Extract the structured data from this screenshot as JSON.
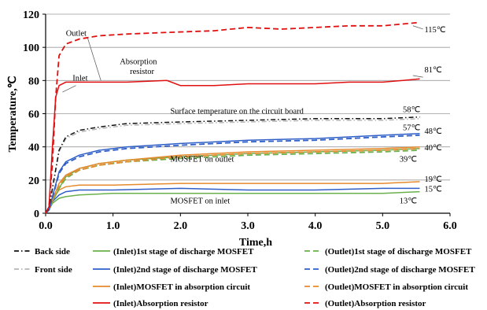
{
  "chart_data": {
    "type": "line",
    "xlabel": "Time,h",
    "ylabel": "Temperature,℃",
    "xlim": [
      0,
      6
    ],
    "ylim": [
      0,
      120
    ],
    "xticks": [
      "0.0",
      "1.0",
      "2.0",
      "3.0",
      "4.0",
      "5.0",
      "6.0"
    ],
    "yticks": [
      "0",
      "20",
      "40",
      "60",
      "80",
      "100",
      "120"
    ],
    "grid": "horizontal",
    "series": [
      {
        "name": "(Outlet)Absorption resistor",
        "color": "#e01010",
        "dash": "dashed",
        "x": [
          0,
          0.05,
          0.1,
          0.15,
          0.2,
          0.3,
          0.5,
          0.8,
          1.2,
          1.8,
          2.5,
          3.0,
          3.5,
          4.0,
          4.5,
          5.0,
          5.55
        ],
        "y": [
          0,
          4,
          30,
          70,
          95,
          102,
          105,
          107,
          108,
          109,
          110,
          112,
          111,
          112,
          113,
          113,
          115
        ]
      },
      {
        "name": "(Inlet)Absorption resistor",
        "color": "#e01010",
        "dash": "solid",
        "x": [
          0,
          0.05,
          0.1,
          0.15,
          0.2,
          0.3,
          0.5,
          0.8,
          1.2,
          1.8,
          2.0,
          2.5,
          3.0,
          3.5,
          4.0,
          4.5,
          5.0,
          5.3,
          5.55
        ],
        "y": [
          0,
          4,
          40,
          70,
          77,
          79,
          79,
          79,
          79,
          80,
          77,
          77,
          78,
          78,
          78,
          79,
          79,
          80,
          81
        ]
      },
      {
        "name": "Back side",
        "color": "#111111",
        "dash": "dashdot",
        "x": [
          0,
          0.05,
          0.1,
          0.2,
          0.3,
          0.5,
          0.8,
          1.2,
          2.0,
          3.0,
          4.0,
          5.0,
          5.55
        ],
        "y": [
          0,
          3,
          15,
          38,
          46,
          50,
          52,
          54,
          55,
          56,
          57,
          57,
          58
        ]
      },
      {
        "name": "Front side",
        "color": "#b5b5b5",
        "dash": "dashdot",
        "x": [
          0,
          0.05,
          0.1,
          0.2,
          0.3,
          0.5,
          0.8,
          1.2,
          2.0,
          3.0,
          4.0,
          5.0,
          5.55
        ],
        "y": [
          0,
          3,
          14,
          37,
          45,
          49,
          51,
          53,
          54,
          55,
          56,
          56,
          57
        ]
      },
      {
        "name": "(Inlet)2nd stage of discharge MOSFET",
        "color": "#2f5fc7",
        "dash": "solid",
        "x": [
          0,
          0.05,
          0.1,
          0.2,
          0.3,
          0.5,
          0.8,
          1.2,
          2.0,
          3.0,
          4.0,
          5.0,
          5.55
        ],
        "y": [
          0,
          2,
          10,
          25,
          31,
          35,
          38,
          40,
          42,
          44,
          45,
          47,
          48
        ]
      },
      {
        "name": "(Outlet)2nd stage of discharge MOSFET",
        "color": "#2f5fc7",
        "dash": "dashed",
        "x": [
          0,
          0.05,
          0.1,
          0.2,
          0.3,
          0.5,
          0.8,
          1.2,
          2.0,
          3.0,
          4.0,
          5.0,
          5.55
        ],
        "y": [
          0,
          2,
          9,
          24,
          30,
          34,
          37,
          39,
          41,
          43,
          44,
          46,
          47
        ]
      },
      {
        "name": "(Inlet)MOSFET in absorption circuit",
        "color": "#e58a2d",
        "dash": "solid",
        "x": [
          0,
          0.05,
          0.1,
          0.2,
          0.3,
          0.5,
          0.8,
          1.2,
          2.0,
          3.0,
          4.0,
          5.0,
          5.55
        ],
        "y": [
          0,
          2,
          8,
          18,
          23,
          27,
          30,
          32,
          35,
          37,
          38,
          39,
          40
        ]
      },
      {
        "name": "(Outlet)MOSFET in absorption circuit",
        "color": "#e58a2d",
        "dash": "dashed",
        "x": [
          0,
          0.05,
          0.1,
          0.2,
          0.3,
          0.5,
          0.8,
          1.2,
          2.0,
          3.0,
          4.0,
          5.0,
          5.55
        ],
        "y": [
          0,
          2,
          8,
          17,
          22,
          26,
          29,
          31,
          34,
          36,
          37,
          38,
          39
        ]
      },
      {
        "name": "(Inlet)1st stage of discharge MOSFET",
        "color": "#6ab04c",
        "dash": "solid",
        "x": [
          0,
          0.05,
          0.1,
          0.2,
          0.3,
          0.5,
          0.8,
          1.2,
          2.0,
          3.0,
          4.0,
          5.0,
          5.55
        ],
        "y": [
          0,
          2,
          7,
          15,
          22,
          27,
          30,
          32,
          34,
          36,
          37,
          38,
          39
        ]
      },
      {
        "name": "(Outlet)1st stage of discharge MOSFET",
        "color": "#6ab04c",
        "dash": "dashed",
        "x": [
          0,
          0.05,
          0.1,
          0.2,
          0.3,
          0.5,
          0.8,
          1.2,
          2.0,
          3.0,
          4.0,
          5.0,
          5.55
        ],
        "y": [
          0,
          2,
          7,
          15,
          21,
          26,
          29,
          31,
          33,
          35,
          36,
          37,
          38
        ]
      },
      {
        "name": "inlet orange",
        "color": "#e58a2d",
        "dash": "solid",
        "x": [
          0,
          0.05,
          0.1,
          0.2,
          0.3,
          0.5,
          1.0,
          2.0,
          3.0,
          4.0,
          5.0,
          5.55
        ],
        "y": [
          0,
          2,
          8,
          14,
          16,
          17,
          17,
          18,
          18,
          18,
          18,
          19
        ]
      },
      {
        "name": "inlet blue",
        "color": "#2f5fc7",
        "dash": "solid",
        "x": [
          0,
          0.05,
          0.1,
          0.2,
          0.3,
          0.5,
          1.0,
          2.0,
          3.0,
          4.0,
          5.0,
          5.55
        ],
        "y": [
          0,
          2,
          7,
          11,
          13,
          14,
          14,
          15,
          14,
          14,
          15,
          15
        ]
      },
      {
        "name": "inlet green",
        "color": "#6ab04c",
        "dash": "solid",
        "x": [
          0,
          0.05,
          0.1,
          0.2,
          0.3,
          0.5,
          1.0,
          2.0,
          3.0,
          4.0,
          5.0,
          5.55
        ],
        "y": [
          0,
          2,
          6,
          9,
          10,
          11,
          12,
          12,
          12,
          12,
          12,
          13
        ]
      }
    ],
    "annotations": [
      {
        "text": "Outlet",
        "x": 0.3,
        "y": 107
      },
      {
        "text": "Absorption",
        "x": 1.1,
        "y": 90
      },
      {
        "text": "resistor",
        "x": 1.25,
        "y": 84
      },
      {
        "text": "Inlet",
        "x": 0.4,
        "y": 80
      },
      {
        "text": "Surface temperature on the circuit board",
        "x": 1.85,
        "y": 60
      },
      {
        "text": "MOSFET on outlet",
        "x": 1.85,
        "y": 31
      },
      {
        "text": "MOSFET on inlet",
        "x": 1.85,
        "y": 6
      },
      {
        "text": "115℃",
        "x": 5.62,
        "y": 109
      },
      {
        "text": "81℃",
        "x": 5.62,
        "y": 85
      },
      {
        "text": "58℃",
        "x": 5.3,
        "y": 61
      },
      {
        "text": "57℃",
        "x": 5.3,
        "y": 50
      },
      {
        "text": "48℃",
        "x": 5.62,
        "y": 48
      },
      {
        "text": "40℃",
        "x": 5.62,
        "y": 38
      },
      {
        "text": "39℃",
        "x": 5.25,
        "y": 31
      },
      {
        "text": "19℃",
        "x": 5.62,
        "y": 19
      },
      {
        "text": "15℃",
        "x": 5.62,
        "y": 13
      },
      {
        "text": "13℃",
        "x": 5.25,
        "y": 6
      }
    ]
  },
  "legend": [
    {
      "label": "Back side",
      "color": "#111111",
      "dash": "dashdot"
    },
    {
      "label": "(Inlet)1st stage of discharge MOSFET",
      "color": "#6ab04c",
      "dash": "solid"
    },
    {
      "label": "(Outlet)1st stage of discharge MOSFET",
      "color": "#6ab04c",
      "dash": "dashed"
    },
    {
      "label": "Front side",
      "color": "#b5b5b5",
      "dash": "dashdot"
    },
    {
      "label": "(Inlet)2nd stage of discharge MOSFET",
      "color": "#2f5fc7",
      "dash": "solid"
    },
    {
      "label": "(Outlet)2nd stage of discharge MOSFET",
      "color": "#2f5fc7",
      "dash": "dashed"
    },
    {
      "label": "(Inlet)MOSFET in absorption circuit",
      "color": "#e58a2d",
      "dash": "solid"
    },
    {
      "label": "(Outlet)MOSFET in absorption circuit",
      "color": "#e58a2d",
      "dash": "dashed"
    },
    {
      "label": "(Inlet)Absorption resistor",
      "color": "#e01010",
      "dash": "solid"
    },
    {
      "label": "(Outlet)Absorption resistor",
      "color": "#e01010",
      "dash": "dashed"
    }
  ]
}
